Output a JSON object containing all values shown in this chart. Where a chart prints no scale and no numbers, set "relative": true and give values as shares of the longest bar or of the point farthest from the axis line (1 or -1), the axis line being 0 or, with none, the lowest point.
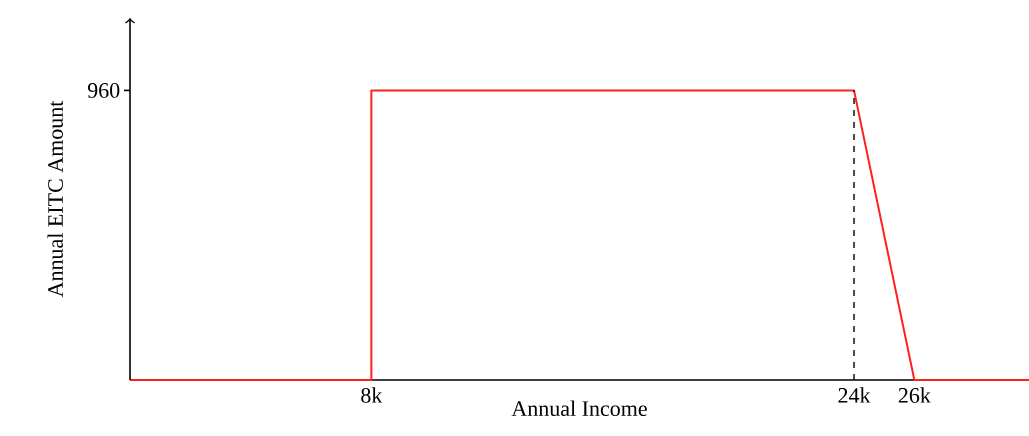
{
  "chart_data": {
    "type": "line",
    "xlabel": "Annual Income",
    "ylabel": "Annual EITC Amount",
    "relative": true,
    "x": [
      0,
      8000,
      8000,
      24000,
      26000,
      29800
    ],
    "series": [
      {
        "color": "#ff2020",
        "values": [
          0,
          0,
          1,
          1,
          0,
          0
        ]
      }
    ],
    "xlim": [
      0,
      29800
    ],
    "xticks": [
      {
        "value": 8000,
        "label": "8k"
      },
      {
        "value": 24000,
        "label": "24k"
      },
      {
        "value": 26000,
        "label": "26k"
      }
    ],
    "annotations": [
      "960"
    ],
    "ref_lines": [
      {
        "axis": "x",
        "value": 24000,
        "color": "#000000",
        "line_style": "dashed"
      }
    ]
  }
}
